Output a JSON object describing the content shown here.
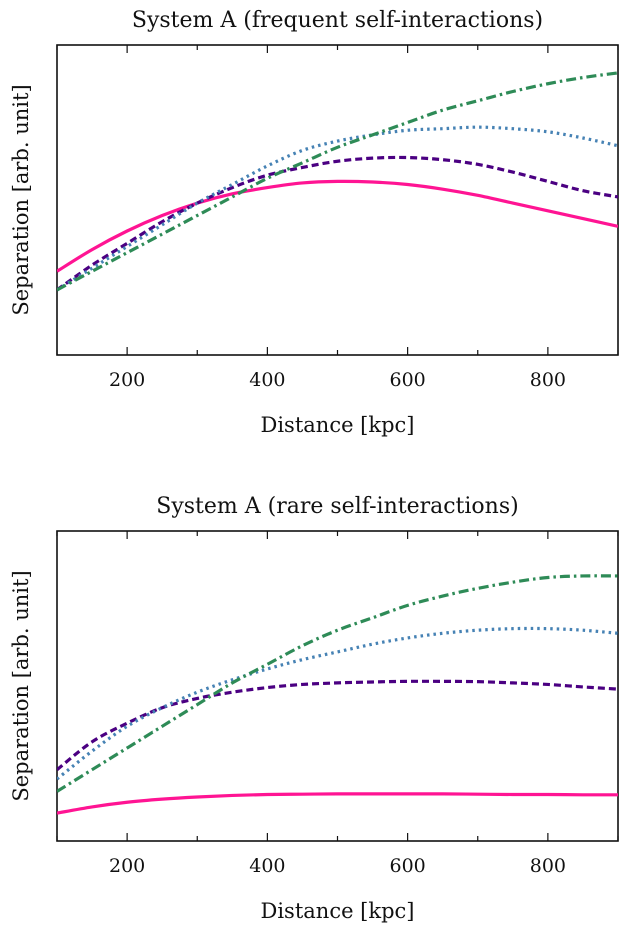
{
  "chart_data": [
    {
      "type": "line",
      "title": "System A (frequent self-interactions)",
      "xlabel": "Distance [kpc]",
      "ylabel": "Separation [arb. unit]",
      "xlim": [
        100,
        900
      ],
      "ylim": [
        0,
        1
      ],
      "xticks": [
        200,
        400,
        600,
        800
      ],
      "grid": false,
      "series": [
        {
          "color": "#ff1493",
          "dash": "solid",
          "x": [
            100,
            150,
            200,
            250,
            300,
            350,
            400,
            450,
            500,
            550,
            600,
            650,
            700,
            750,
            800,
            850,
            900
          ],
          "y": [
            0.27,
            0.34,
            0.4,
            0.45,
            0.49,
            0.52,
            0.54,
            0.555,
            0.56,
            0.558,
            0.55,
            0.535,
            0.515,
            0.49,
            0.465,
            0.44,
            0.415
          ]
        },
        {
          "color": "#4b0082",
          "dash": "dashed",
          "x": [
            100,
            150,
            200,
            250,
            300,
            350,
            400,
            450,
            500,
            550,
            600,
            650,
            700,
            750,
            800,
            850,
            900
          ],
          "y": [
            0.21,
            0.29,
            0.36,
            0.43,
            0.49,
            0.54,
            0.58,
            0.605,
            0.625,
            0.635,
            0.637,
            0.63,
            0.615,
            0.59,
            0.56,
            0.53,
            0.51
          ]
        },
        {
          "color": "#4682b4",
          "dash": "dotted",
          "x": [
            100,
            150,
            200,
            250,
            300,
            350,
            400,
            450,
            500,
            550,
            600,
            650,
            700,
            750,
            800,
            850,
            900
          ],
          "y": [
            0.21,
            0.28,
            0.35,
            0.42,
            0.49,
            0.55,
            0.61,
            0.66,
            0.69,
            0.71,
            0.725,
            0.73,
            0.735,
            0.73,
            0.72,
            0.7,
            0.675
          ]
        },
        {
          "color": "#2e8b57",
          "dash": "dashdot",
          "x": [
            100,
            150,
            200,
            250,
            300,
            350,
            400,
            450,
            500,
            550,
            600,
            650,
            700,
            750,
            800,
            850,
            900
          ],
          "y": [
            0.21,
            0.27,
            0.33,
            0.39,
            0.45,
            0.51,
            0.57,
            0.62,
            0.67,
            0.71,
            0.75,
            0.79,
            0.82,
            0.85,
            0.875,
            0.895,
            0.91
          ]
        }
      ]
    },
    {
      "type": "line",
      "title": "System A (rare self-interactions)",
      "xlabel": "Distance [kpc]",
      "ylabel": "Separation [arb. unit]",
      "xlim": [
        100,
        900
      ],
      "ylim": [
        0,
        1
      ],
      "xticks": [
        200,
        400,
        600,
        800
      ],
      "grid": false,
      "series": [
        {
          "color": "#ff1493",
          "dash": "solid",
          "x": [
            100,
            150,
            200,
            250,
            300,
            350,
            400,
            450,
            500,
            550,
            600,
            650,
            700,
            750,
            800,
            850,
            900
          ],
          "y": [
            0.09,
            0.11,
            0.125,
            0.135,
            0.142,
            0.147,
            0.15,
            0.151,
            0.152,
            0.152,
            0.152,
            0.152,
            0.151,
            0.15,
            0.15,
            0.149,
            0.149
          ]
        },
        {
          "color": "#4b0082",
          "dash": "dashed",
          "x": [
            100,
            150,
            200,
            250,
            300,
            350,
            400,
            450,
            500,
            550,
            600,
            650,
            700,
            750,
            800,
            850,
            900
          ],
          "y": [
            0.23,
            0.32,
            0.38,
            0.43,
            0.46,
            0.48,
            0.495,
            0.505,
            0.51,
            0.513,
            0.515,
            0.515,
            0.514,
            0.51,
            0.505,
            0.497,
            0.49
          ]
        },
        {
          "color": "#4682b4",
          "dash": "dotted",
          "x": [
            100,
            150,
            200,
            250,
            300,
            350,
            400,
            450,
            500,
            550,
            600,
            650,
            700,
            750,
            800,
            850,
            900
          ],
          "y": [
            0.2,
            0.29,
            0.37,
            0.43,
            0.48,
            0.52,
            0.555,
            0.585,
            0.61,
            0.635,
            0.655,
            0.67,
            0.68,
            0.685,
            0.685,
            0.68,
            0.67
          ]
        },
        {
          "color": "#2e8b57",
          "dash": "dashdot",
          "x": [
            100,
            150,
            200,
            250,
            300,
            350,
            400,
            450,
            500,
            550,
            600,
            650,
            700,
            750,
            800,
            850,
            900
          ],
          "y": [
            0.16,
            0.23,
            0.3,
            0.37,
            0.44,
            0.51,
            0.57,
            0.63,
            0.68,
            0.72,
            0.76,
            0.79,
            0.815,
            0.835,
            0.85,
            0.855,
            0.855
          ]
        }
      ]
    }
  ]
}
